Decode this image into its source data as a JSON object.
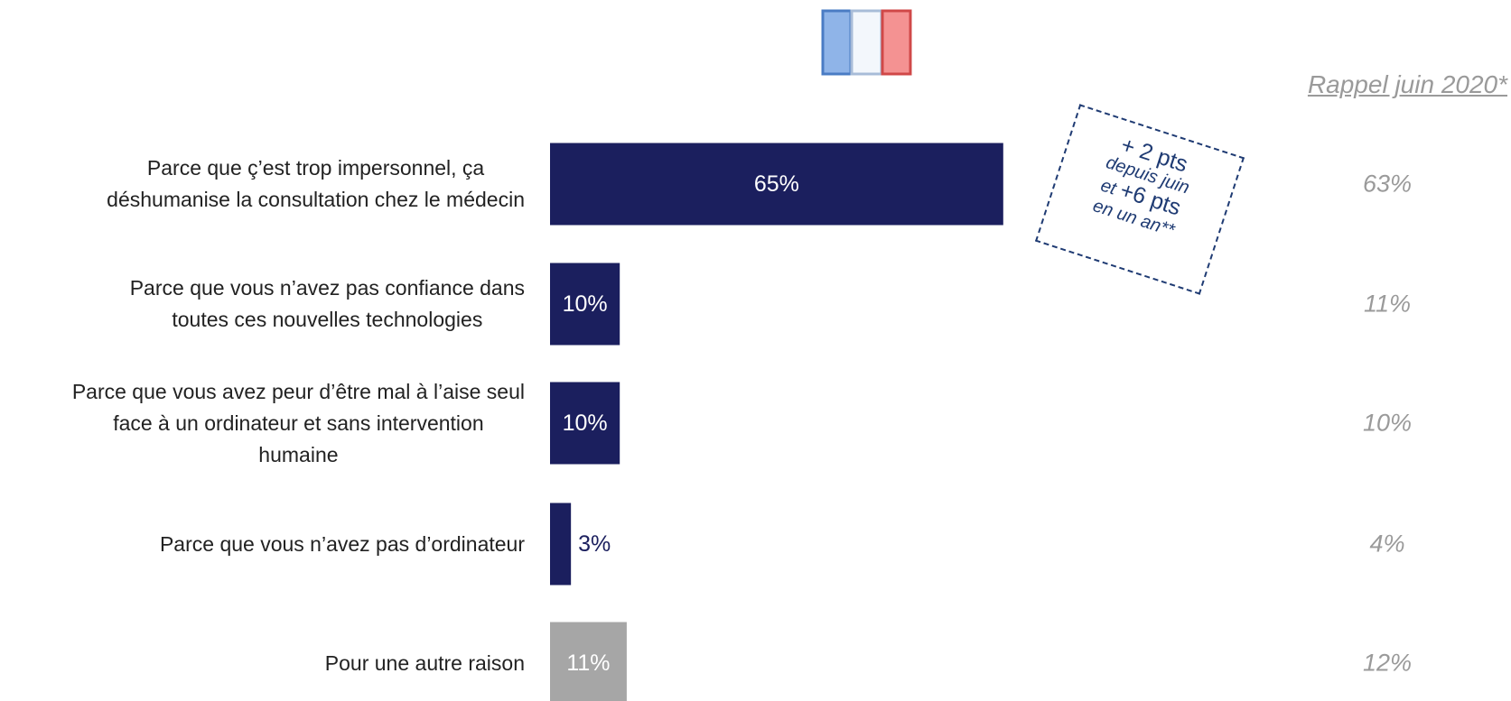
{
  "chart_data": {
    "type": "bar",
    "orientation": "horizontal",
    "categories": [
      "Parce que ç’est trop impersonnel, ça\ndéshumanise la consultation chez le médecin",
      "Parce que vous n’avez pas confiance dans\ntoutes ces nouvelles technologies",
      "Parce que vous avez peur d’être mal à l’aise seul\nface à un ordinateur et sans intervention\nhumaine",
      "Parce que vous n’avez pas d’ordinateur",
      "Pour une autre raison"
    ],
    "values": [
      65,
      10,
      10,
      3,
      11
    ],
    "value_labels": [
      "65%",
      "10%",
      "10%",
      "3%",
      "11%"
    ],
    "colors": [
      "#1b1f5e",
      "#1b1f5e",
      "#1b1f5e",
      "#1b1f5e",
      "#a6a6a6"
    ],
    "comparison": {
      "title": "Rappel juin 2020*",
      "values": [
        63,
        11,
        10,
        4,
        12
      ],
      "value_labels": [
        "63%",
        "11%",
        "10%",
        "4%",
        "12%"
      ]
    },
    "annotation": {
      "line1": "+ 2 pts",
      "line2": "depuis juin",
      "line3a": "et",
      "line3b": "+6 pts",
      "line4": "en un an**"
    }
  }
}
